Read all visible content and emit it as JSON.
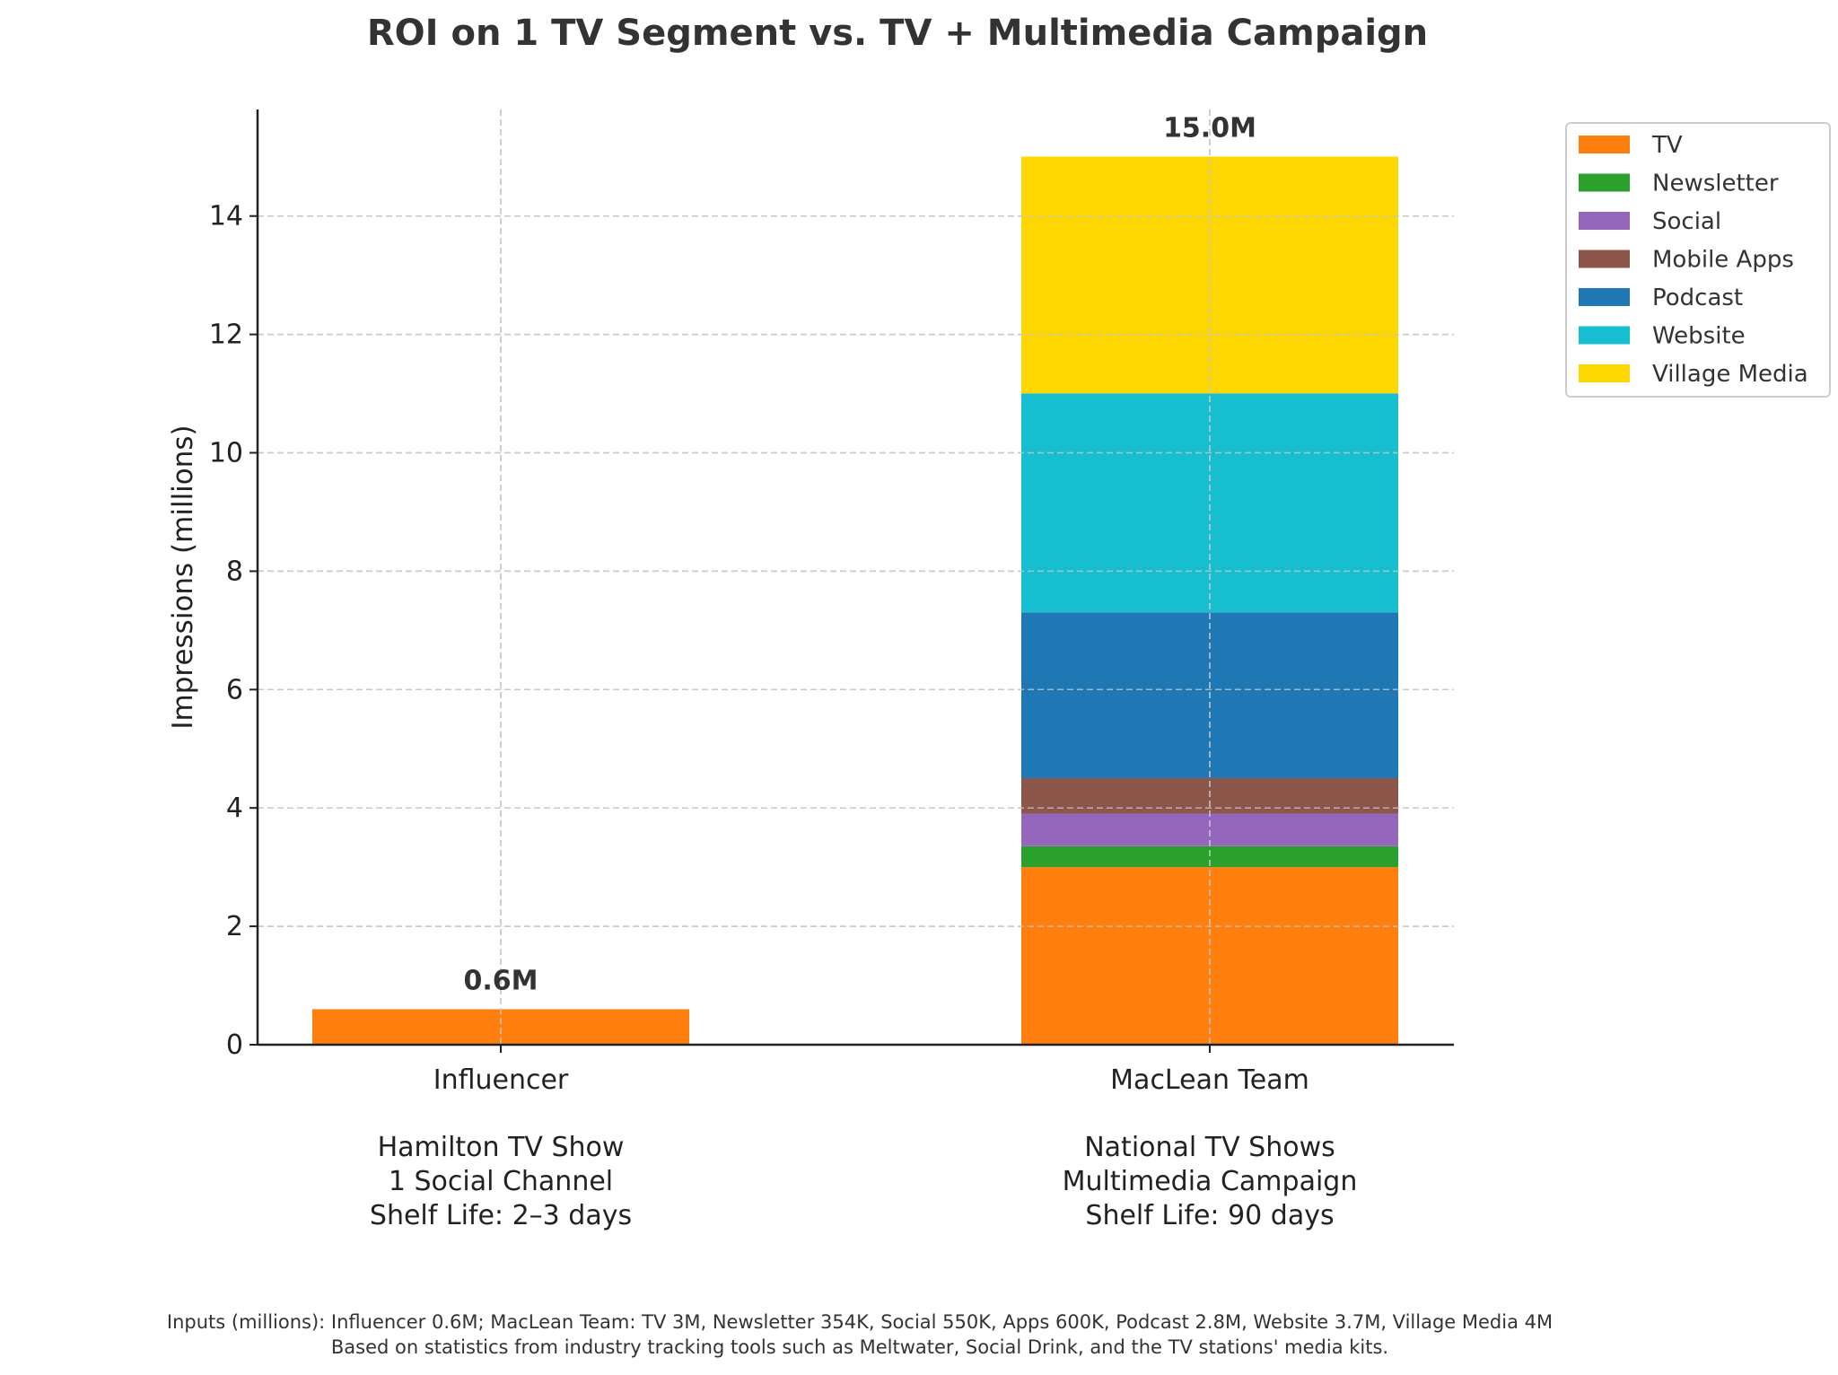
{
  "chart_data": {
    "type": "bar",
    "stacked": true,
    "title": "ROI on 1 TV Segment vs. TV + Multimedia Campaign",
    "xlabel": "",
    "ylabel": "Impressions (millions)",
    "ylim": [
      0,
      15.8
    ],
    "yticks": [
      0,
      2,
      4,
      6,
      8,
      10,
      12,
      14
    ],
    "grid": true,
    "legend_position": "upper-right-outside",
    "categories": [
      "Influencer",
      "MacLean Team"
    ],
    "category_sublabels": [
      [
        "Hamilton TV Show",
        "1 Social Channel",
        "Shelf Life: 2–3 days"
      ],
      [
        "National TV Shows",
        "Multimedia Campaign",
        "Shelf Life: 90 days"
      ]
    ],
    "series": [
      {
        "name": "TV",
        "color": "#ff7f0e",
        "values": [
          0.6,
          3.0
        ]
      },
      {
        "name": "Newsletter",
        "color": "#2ca02c",
        "values": [
          0,
          0.354
        ]
      },
      {
        "name": "Social",
        "color": "#9467bd",
        "values": [
          0,
          0.55
        ]
      },
      {
        "name": "Mobile Apps",
        "color": "#8c564b",
        "values": [
          0,
          0.6
        ]
      },
      {
        "name": "Podcast",
        "color": "#1f77b4",
        "values": [
          0,
          2.8
        ]
      },
      {
        "name": "Website",
        "color": "#17becf",
        "values": [
          0,
          3.7
        ]
      },
      {
        "name": "Village Media",
        "color": "#ffd700",
        "values": [
          0,
          4.0
        ]
      }
    ],
    "totals_labels": [
      "0.6M",
      "15.0M"
    ],
    "footnotes": [
      "Inputs (millions): Influencer 0.6M; MacLean Team: TV 3M, Newsletter 354K, Social 550K, Apps 600K, Podcast 2.8M, Website 3.7M, Village Media 4M",
      "Based on statistics from industry tracking tools such as Meltwater, Social Drink, and the TV stations' media kits."
    ]
  }
}
